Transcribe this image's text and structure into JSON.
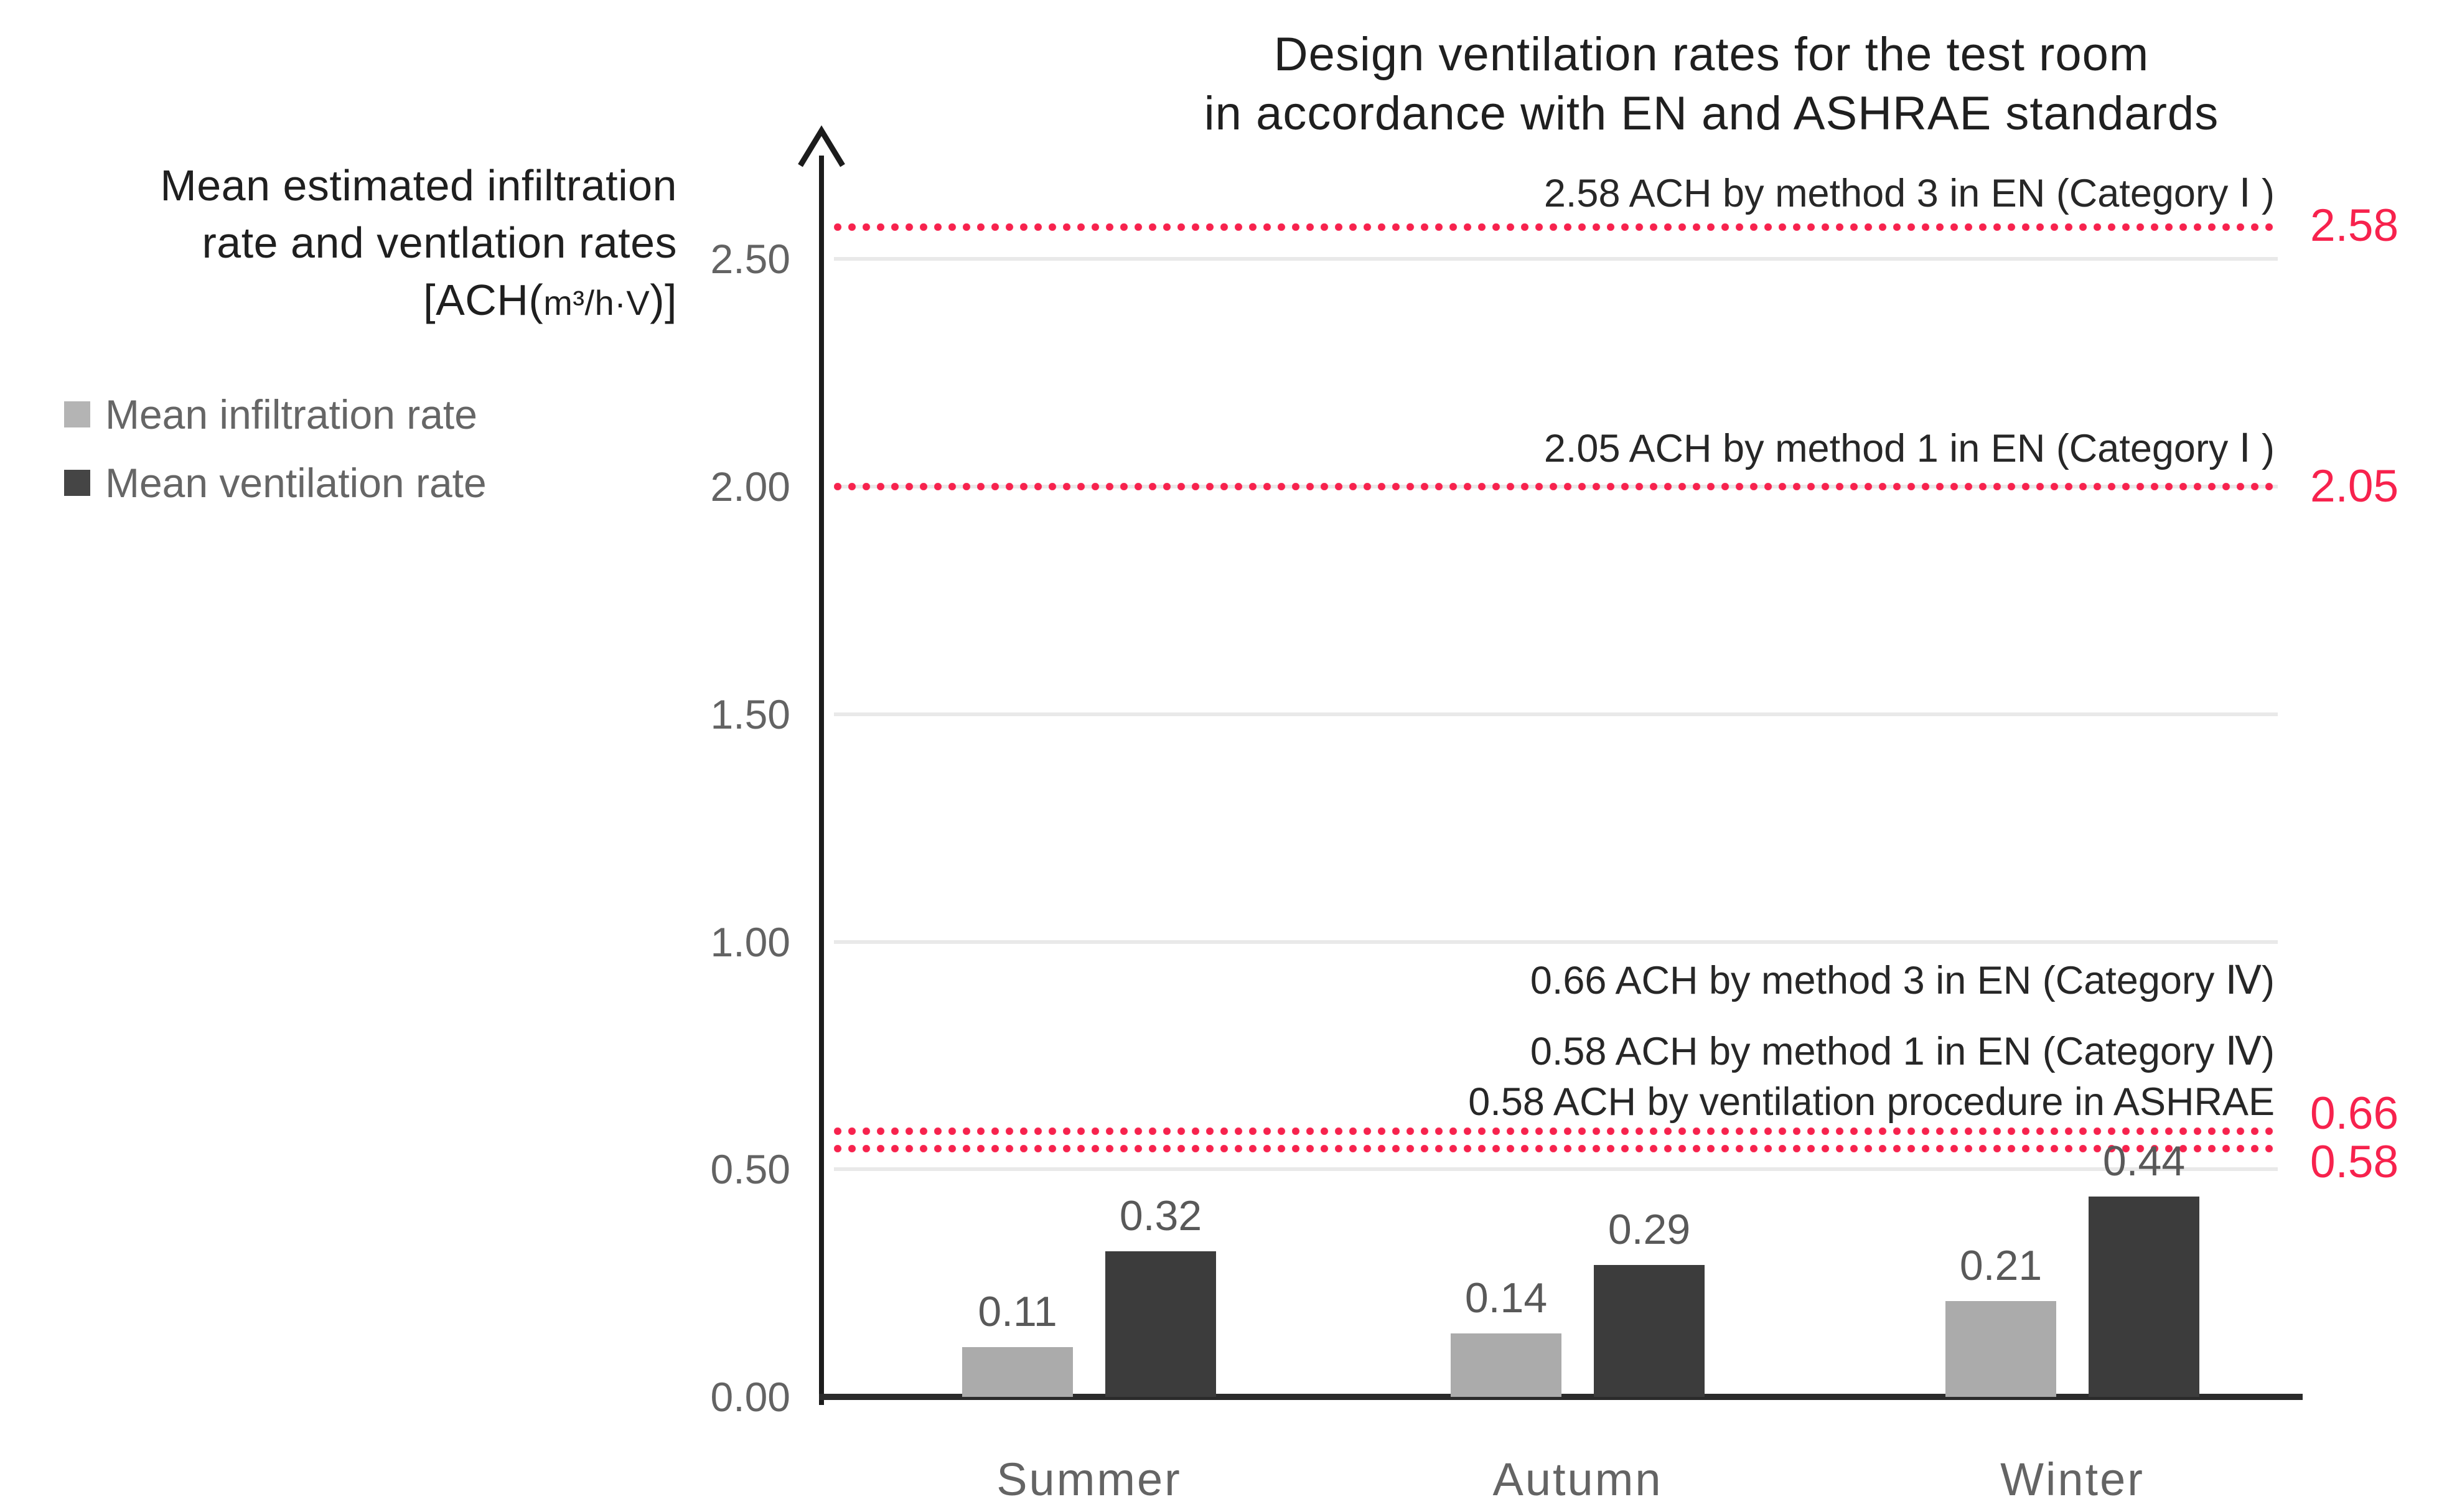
{
  "title": {
    "line1": "Design ventilation rates for the test room",
    "line2": "in accordance with EN and ASHRAE standards"
  },
  "y_axis_title": {
    "line1": "Mean estimated infiltration",
    "line2": "rate and ventlation rates",
    "unit_prefix": "[ACH(",
    "unit_small": "m³/h·V",
    "unit_suffix": ")]"
  },
  "legend": {
    "items": [
      {
        "label": "Mean infiltration rate",
        "color": "#b4b4b4"
      },
      {
        "label": "Mean ventilation rate",
        "color": "#454545"
      }
    ]
  },
  "chart_data": {
    "type": "bar",
    "title": "Design ventilation rates for the test room in accordance with EN and ASHRAE standards",
    "ylabel": "Mean estimated infiltration rate and ventlation rates [ACH(m³/h·V)]",
    "categories": [
      "Summer",
      "Autumn",
      "Winter"
    ],
    "series": [
      {
        "name": "Mean infiltration rate",
        "color": "#ababab",
        "values": [
          0.11,
          0.14,
          0.21
        ]
      },
      {
        "name": "Mean ventilation rate",
        "color": "#3c3c3c",
        "values": [
          0.32,
          0.29,
          0.44
        ]
      }
    ],
    "bar_value_labels": [
      [
        "0.11",
        "0.14",
        "0.21"
      ],
      [
        "0.32",
        "0.29",
        "0.44"
      ]
    ],
    "y_ticks": [
      {
        "value": 0.0,
        "label": "0.00"
      },
      {
        "value": 0.5,
        "label": "0.50"
      },
      {
        "value": 1.0,
        "label": "1.00"
      },
      {
        "value": 1.5,
        "label": "1.50"
      },
      {
        "value": 2.0,
        "label": "2.00"
      },
      {
        "value": 2.5,
        "label": "2.50"
      }
    ],
    "ylim": [
      0,
      2.74
    ],
    "grid": true,
    "legend_position": "left",
    "reference_line_color": "#f7224d",
    "reference_lines": [
      {
        "value": 2.58,
        "side_label": "2.58",
        "annotation": "2.58 ACH by method 3 in EN (Category Ⅰ )"
      },
      {
        "value": 2.05,
        "side_label": "2.05",
        "annotation": "2.05 ACH by method 1 in EN (Category Ⅰ )"
      },
      {
        "value": 0.66,
        "side_label": "0.66",
        "annotation": "0.66 ACH by method 3 in EN (Category Ⅳ)"
      },
      {
        "value": 0.58,
        "side_label": "0.58",
        "annotation": "0.58 ACH by method 1 in EN (Category Ⅳ)"
      },
      {
        "value": 0.58,
        "side_label": null,
        "annotation": "0.58 ACH by ventilation procedure in ASHRAE"
      }
    ]
  },
  "colors": {
    "red": "#f7224d",
    "grid": "#e9e9e9",
    "axis": "#2b2b2b",
    "tick_text": "#636363",
    "annotation_text": "#272727",
    "legend_text": "#666666",
    "bar_label_text": "#595959",
    "title_text": "#1f1f1f"
  }
}
